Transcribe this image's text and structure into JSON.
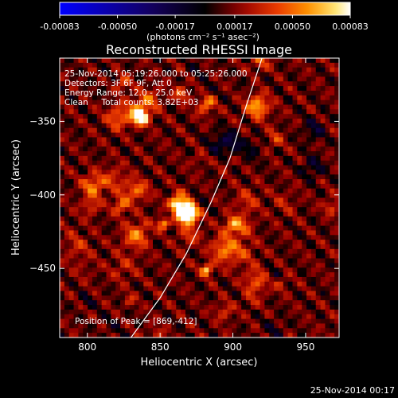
{
  "chart_data": {
    "type": "heatmap",
    "title": "Reconstructed RHESSI Image",
    "xlabel": "Heliocentric X (arcsec)",
    "ylabel": "Heliocentric Y (arcsec)",
    "xlim": [
      781,
      973
    ],
    "ylim": [
      -497,
      -307
    ],
    "x_ticks": [
      800,
      850,
      900,
      950
    ],
    "y_ticks": [
      -350,
      -400,
      -450
    ],
    "colorbar": {
      "range": [
        -0.00083,
        0.00083
      ],
      "ticks": [
        "-0.00083",
        "-0.00050",
        "-0.00017",
        "0.00017",
        "0.00050",
        "0.00083"
      ],
      "unit_label": "(photons cm⁻² s⁻¹ asec⁻²)",
      "colormap": [
        "#0000ff",
        "#000000",
        "#8b0000",
        "#ff4500",
        "#ffa500",
        "#ffffa0",
        "#ffffff"
      ]
    },
    "annotations": [
      "25-Nov-2014 05:19:26.000 to 05:25:26.000",
      "Detectors: 3F 6F 9F, Att 0",
      "Energy Range: 12.0 - 25.0 keV",
      "Clean     Total counts: 3.82E+03"
    ],
    "peak_label": "Position of Peak = [869,-412]",
    "peak": [
      869,
      -412
    ],
    "limb_points": [
      [
        830,
        -497
      ],
      [
        850,
        -470
      ],
      [
        868,
        -440
      ],
      [
        885,
        -405
      ],
      [
        898,
        -375
      ],
      [
        909,
        -340
      ],
      [
        920,
        -307
      ]
    ]
  },
  "footer_date": "25-Nov-2014 00:17"
}
